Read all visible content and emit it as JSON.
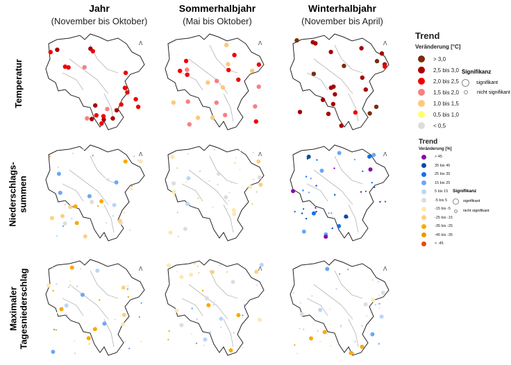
{
  "columns": [
    {
      "title": "Jahr",
      "subtitle": "(November bis Oktober)"
    },
    {
      "title": "Sommerhalbjahr",
      "subtitle": "(Mai bis Oktober)"
    },
    {
      "title": "Winterhalbjahr",
      "subtitle": "(November bis April)"
    }
  ],
  "rows": [
    {
      "label": "Temperatur"
    },
    {
      "label": "Niederschlags-\nsummen"
    },
    {
      "label": "Maximaler\nTagesniederschlag"
    }
  ],
  "legend_temp": {
    "title": "Trend",
    "subtitle": "Veränderung [°C]",
    "items": [
      {
        "label": "> 3,0",
        "color": "#7b2d0c"
      },
      {
        "label": "2,5 bis 3,0",
        "color": "#a80000"
      },
      {
        "label": "2,0 bis 2,5",
        "color": "#f00000"
      },
      {
        "label": "1,5 bis 2,0",
        "color": "#f88080"
      },
      {
        "label": "1,0 bis 1,5",
        "color": "#fdc87a"
      },
      {
        "label": "0,5 bis 1,0",
        "color": "#ffff70"
      },
      {
        "label": "< 0,5",
        "color": "#dcdcdc"
      }
    ],
    "significance": {
      "title": "Signifikanz",
      "significant": "signifikant",
      "not_significant": "nicht signifikant"
    }
  },
  "legend_precip": {
    "title": "Trend",
    "subtitle": "Veränderung [%]",
    "items": [
      {
        "label": "> 45",
        "color": "#8a0aa8"
      },
      {
        "label": "35 bis 45",
        "color": "#0a4aa0"
      },
      {
        "label": "25 bis 35",
        "color": "#1570ee"
      },
      {
        "label": "15 bis 25",
        "color": "#6aa8f8"
      },
      {
        "label": "5 bis 15",
        "color": "#bcd4fb"
      },
      {
        "label": "-5 bis 5",
        "color": "#dddddd"
      },
      {
        "label": "-15 bis -5",
        "color": "#fde8b0"
      },
      {
        "label": "-25 bis -15",
        "color": "#fdd080"
      },
      {
        "label": "-35 bis -25",
        "color": "#fca800"
      },
      {
        "label": "-45 bis -35",
        "color": "#e89a00"
      },
      {
        "label": "< -45",
        "color": "#e84a00"
      }
    ],
    "significance": {
      "title": "Signifikanz",
      "significant": "signifikant",
      "not_significant": "nicht signifikant"
    }
  }
}
